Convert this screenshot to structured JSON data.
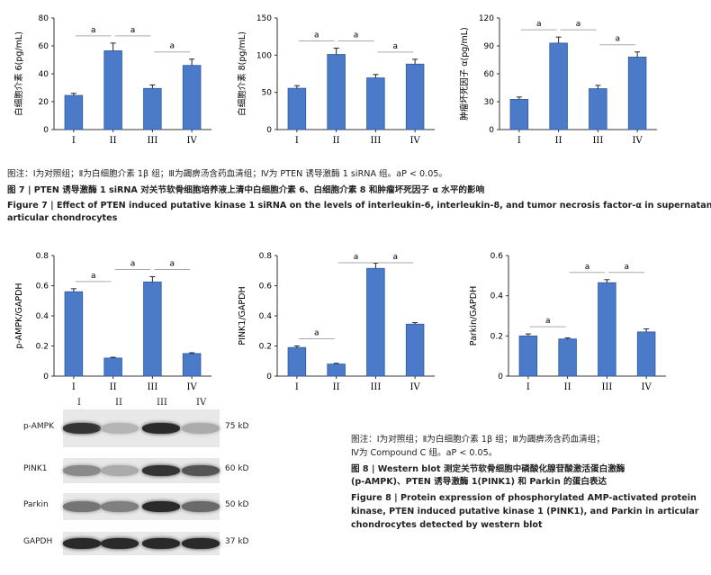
{
  "figure7": {
    "charts": [
      {
        "ylabel": "白细胞介素 6(pg/mL)",
        "yticks": [
          "0",
          "20",
          "40",
          "60",
          "80"
        ],
        "ymax": 80,
        "categories": [
          "I",
          "II",
          "III",
          "IV"
        ],
        "values": [
          24.5,
          56.5,
          29.5,
          46
        ],
        "errors": [
          1.5,
          5.5,
          2.5,
          4.5
        ],
        "sig": [
          {
            "from": 0,
            "to": 1,
            "label": "a"
          },
          {
            "from": 1,
            "to": 2,
            "label": "a"
          },
          {
            "from": 2,
            "to": 3,
            "label": "a"
          }
        ]
      },
      {
        "ylabel": "白细胞介素 8(pg/mL)",
        "yticks": [
          "0",
          "50",
          "100",
          "150"
        ],
        "ymax": 150,
        "categories": [
          "I",
          "II",
          "III",
          "IV"
        ],
        "values": [
          55.5,
          101,
          69.5,
          88
        ],
        "errors": [
          3.5,
          8.5,
          4.5,
          6.5
        ],
        "sig": [
          {
            "from": 0,
            "to": 1,
            "label": "a"
          },
          {
            "from": 1,
            "to": 2,
            "label": "a"
          },
          {
            "from": 2,
            "to": 3,
            "label": "a"
          }
        ]
      },
      {
        "ylabel": "肿瘤坏死因子 α(pg/mL)",
        "yticks": [
          "0",
          "30",
          "60",
          "90",
          "120"
        ],
        "ymax": 120,
        "categories": [
          "I",
          "II",
          "III",
          "IV"
        ],
        "values": [
          32.5,
          93,
          44,
          78
        ],
        "errors": [
          2.5,
          6.5,
          3.5,
          5.5
        ],
        "sig": [
          {
            "from": 0,
            "to": 1,
            "label": "a"
          },
          {
            "from": 1,
            "to": 2,
            "label": "a"
          },
          {
            "from": 2,
            "to": 3,
            "label": "a"
          }
        ]
      }
    ],
    "note": "图注：Ⅰ为对照组；Ⅱ为白细胞介素 1β 组；Ⅲ为蠲痹汤含药血清组；Ⅳ为 PTEN 诱导激酶 1 siRNA 组。aP < 0.05。",
    "title_cn": "图 7 | PTEN 诱导激酶 1 siRNA 对关节软骨细胞培养液上清中白细胞介素 6、白细胞介素 8 和肿瘤坏死因子 α 水平的影响",
    "title_en_1": "Figure 7 | Effect of PTEN induced putative kinase 1 siRNA on the levels of interleukin-6, interleukin-8, and tumor necrosis factor-α in supernatant of",
    "title_en_2": "articular chondrocytes"
  },
  "figure8": {
    "charts": [
      {
        "ylabel": "p-AMPK/GAPDH",
        "yticks": [
          "0",
          "0.2",
          "0.4",
          "0.6",
          "0.8"
        ],
        "ymax": 0.8,
        "categories": [
          "I",
          "II",
          "III",
          "IV"
        ],
        "values": [
          0.56,
          0.12,
          0.625,
          0.15
        ],
        "errors": [
          0.02,
          0.005,
          0.035,
          0.005
        ],
        "sig": [
          {
            "from": 0,
            "to": 1,
            "label": "a"
          },
          {
            "from": 1,
            "to": 2,
            "label": "a"
          },
          {
            "from": 2,
            "to": 3,
            "label": "a"
          }
        ]
      },
      {
        "ylabel": "PINK1/GAPDH",
        "yticks": [
          "0",
          "0.2",
          "0.4",
          "0.6",
          "0.8"
        ],
        "ymax": 0.8,
        "categories": [
          "I",
          "II",
          "III",
          "IV"
        ],
        "values": [
          0.19,
          0.08,
          0.715,
          0.345
        ],
        "errors": [
          0.01,
          0.005,
          0.035,
          0.01
        ],
        "sig": [
          {
            "from": 0,
            "to": 1,
            "label": "a"
          },
          {
            "from": 1,
            "to": 2,
            "label": "a"
          },
          {
            "from": 2,
            "to": 3,
            "label": "a"
          }
        ]
      },
      {
        "ylabel": "Parkin/GAPDH",
        "yticks": [
          "0",
          "0.2",
          "0.4",
          "0.6"
        ],
        "ymax": 0.6,
        "categories": [
          "I",
          "II",
          "III",
          "IV"
        ],
        "values": [
          0.2,
          0.185,
          0.465,
          0.22
        ],
        "errors": [
          0.01,
          0.005,
          0.015,
          0.015
        ],
        "sig": [
          {
            "from": 0,
            "to": 1,
            "label": "a"
          },
          {
            "from": 1,
            "to": 2,
            "label": "a"
          },
          {
            "from": 2,
            "to": 3,
            "label": "a"
          }
        ]
      }
    ],
    "blot": {
      "lanes": [
        "I",
        "II",
        "III",
        "IV"
      ],
      "rows": [
        {
          "name": "p-AMPK",
          "size": "75 kD",
          "intensity": [
            0.85,
            0.25,
            0.9,
            0.3
          ]
        },
        {
          "name": "PINK1",
          "size": "60 kD",
          "intensity": [
            0.45,
            0.3,
            0.85,
            0.7
          ]
        },
        {
          "name": "Parkin",
          "size": "50 kD",
          "intensity": [
            0.55,
            0.5,
            0.9,
            0.6
          ]
        },
        {
          "name": "GAPDH",
          "size": "37 kD",
          "intensity": [
            0.9,
            0.9,
            0.9,
            0.9
          ]
        }
      ]
    },
    "note_1": "图注：Ⅰ为对照组；Ⅱ为白细胞介素 1β 组；Ⅲ为蠲痹汤含药血清组；",
    "note_2": "Ⅳ为 Compound C 组。aP < 0.05。",
    "title_cn_1": "图 8 | Western blot 测定关节软骨细胞中磷酸化腺苷酸激活蛋白激酶",
    "title_cn_2": "(p-AMPK)、PTEN 诱导激酶 1(PINK1) 和 Parkin 的蛋白表达",
    "title_en_1": "Figure 8 | Protein expression of phosphorylated AMP-activated protein",
    "title_en_2": "kinase, PTEN induced putative kinase 1 (PINK1), and Parkin in articular",
    "title_en_3": "chondrocytes detected by western blot"
  },
  "colors": {
    "bar": "#4a7ac8",
    "bar_edge": "#2f5a9e",
    "sig_line": "#aaaaaa"
  }
}
